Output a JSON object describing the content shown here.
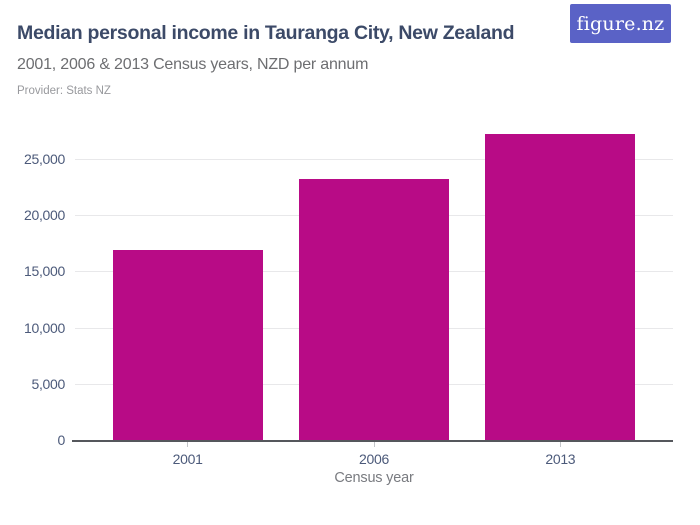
{
  "header": {
    "title": "Median personal income in Tauranga City, New Zealand",
    "subtitle": "2001, 2006 & 2013 Census years, NZD per annum",
    "provider": "Provider: Stats NZ",
    "logo_text": "figure.nz"
  },
  "colors": {
    "bar": "#b80b86",
    "logo_background": "#5a62c6",
    "title_text": "#3c4a68",
    "axis_label_text": "#4c5a7a",
    "gridline": "#e8e8ea",
    "baseline": "#55575c"
  },
  "chart_data": {
    "type": "bar",
    "title": "Median personal income in Tauranga City, New Zealand",
    "subtitle": "2001, 2006 & 2013 Census years, NZD per annum",
    "provider": "Stats NZ",
    "categories": [
      "2001",
      "2006",
      "2013"
    ],
    "values": [
      16900,
      23200,
      27200
    ],
    "xlabel": "Census year",
    "ylabel": "",
    "units": "NZD per annum",
    "ylim": [
      0,
      27600
    ],
    "yticks": [
      0,
      5000,
      10000,
      15000,
      20000,
      25000
    ],
    "ytick_labels": [
      "0",
      "5,000",
      "10,000",
      "15,000",
      "20,000",
      "25,000"
    ],
    "grid": true,
    "legend_position": "none",
    "bar_color": "#b80b86"
  }
}
